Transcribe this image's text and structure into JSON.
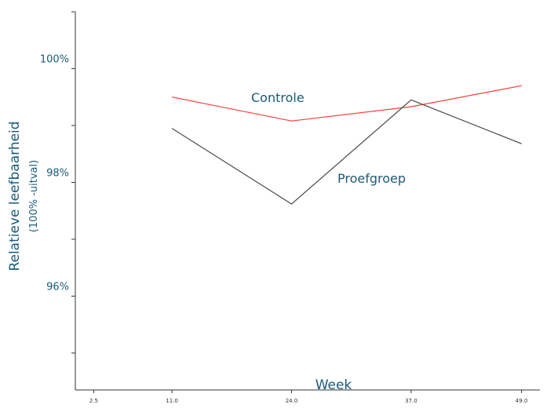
{
  "chart_data": {
    "type": "line",
    "xlabel": "Week",
    "ylabel": "Relatieve leefbaarheid",
    "ylabel_sub": "(100% -uitval)",
    "x_ticks": [
      "2.5",
      "11.0",
      "24.0",
      "37.0",
      "49.0"
    ],
    "x_tick_values": [
      2.5,
      11.0,
      24.0,
      37.0,
      49.0
    ],
    "xlim": [
      0.5,
      51
    ],
    "y_ticks": [
      96,
      98,
      100
    ],
    "y_tick_labels": [
      "96%",
      "98%",
      "100%"
    ],
    "ylim": [
      94.35,
      101.0
    ],
    "grid": false,
    "series": [
      {
        "name": "Controle",
        "color": "#ff3b3b",
        "x": [
          11.0,
          24.0,
          37.0,
          49.0
        ],
        "y": [
          99.5,
          99.08,
          99.33,
          99.7
        ]
      },
      {
        "name": "Proefgroep",
        "color": "#4a4a4a",
        "x": [
          11.0,
          24.0,
          37.0,
          49.0
        ],
        "y": [
          98.95,
          97.62,
          99.45,
          98.68
        ]
      }
    ]
  }
}
